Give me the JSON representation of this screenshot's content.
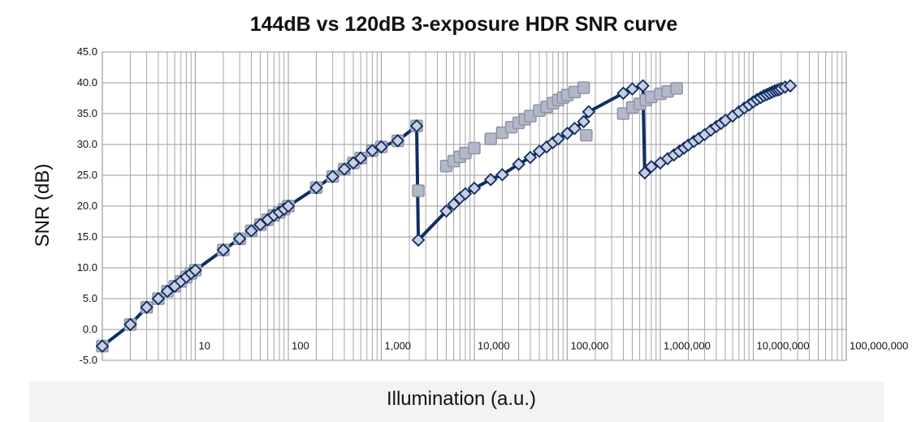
{
  "chart_data": {
    "type": "scatter",
    "title": "144dB vs 120dB 3-exposure HDR SNR curve",
    "xlabel": "Illumination (a.u.)",
    "ylabel": "SNR (dB)",
    "x_scale": "log",
    "xlim": [
      1,
      100000000
    ],
    "ylim": [
      -5,
      45
    ],
    "x_tick_values": [
      10,
      100,
      1000,
      10000,
      100000,
      1000000,
      10000000,
      100000000
    ],
    "x_tick_labels": [
      "10",
      "100",
      "1,000",
      "10,000",
      "100,000",
      "1,000,000",
      "10,000,000",
      "100,000,000"
    ],
    "y_tick_values": [
      -5,
      0,
      5,
      10,
      15,
      20,
      25,
      30,
      35,
      40,
      45
    ],
    "y_tick_labels": [
      "-5.0",
      "0.0",
      "5.0",
      "10.0",
      "15.0",
      "20.0",
      "25.0",
      "30.0",
      "35.0",
      "40.0",
      "45.0"
    ],
    "grid": true,
    "legend": "none",
    "series": [
      {
        "marker": "square",
        "color": "#b3b8c9",
        "edge_color": "#8d93a8",
        "points": [
          [
            1,
            -2.7
          ],
          [
            2,
            0.8
          ],
          [
            3,
            3.6
          ],
          [
            4,
            5.0
          ],
          [
            5,
            6.2
          ],
          [
            6,
            7.0
          ],
          [
            7,
            7.8
          ],
          [
            8,
            8.5
          ],
          [
            9,
            9.1
          ],
          [
            10,
            9.6
          ],
          [
            20,
            12.9
          ],
          [
            30,
            14.7
          ],
          [
            40,
            16.0
          ],
          [
            50,
            17.0
          ],
          [
            60,
            17.8
          ],
          [
            70,
            18.5
          ],
          [
            80,
            19.0
          ],
          [
            90,
            19.5
          ],
          [
            100,
            20.0
          ],
          [
            200,
            23.0
          ],
          [
            300,
            24.8
          ],
          [
            400,
            26.0
          ],
          [
            500,
            27.0
          ],
          [
            600,
            27.8
          ],
          [
            800,
            29.0
          ],
          [
            1000,
            29.6
          ],
          [
            1500,
            30.6
          ],
          [
            2400,
            33.0
          ],
          [
            2500,
            22.5
          ],
          [
            5000,
            26.5
          ],
          [
            6000,
            27.3
          ],
          [
            7000,
            28.0
          ],
          [
            8000,
            28.6
          ],
          [
            10000,
            29.4
          ],
          [
            15000,
            30.9
          ],
          [
            20000,
            31.9
          ],
          [
            25000,
            32.8
          ],
          [
            30000,
            33.5
          ],
          [
            35000,
            34.1
          ],
          [
            40000,
            34.6
          ],
          [
            50000,
            35.5
          ],
          [
            60000,
            36.1
          ],
          [
            70000,
            36.7
          ],
          [
            80000,
            37.2
          ],
          [
            90000,
            37.6
          ],
          [
            100000,
            38.0
          ],
          [
            120000,
            38.5
          ],
          [
            150000,
            39.2
          ],
          [
            160000,
            31.5
          ],
          [
            400000,
            35.0
          ],
          [
            500000,
            36.0
          ],
          [
            600000,
            36.6
          ],
          [
            700000,
            37.2
          ],
          [
            800000,
            37.7
          ],
          [
            1000000,
            38.2
          ],
          [
            1200000,
            38.6
          ],
          [
            1500000,
            39.1
          ]
        ]
      },
      {
        "marker": "diamond",
        "color": "#c9cfe0",
        "edge_color": "#0f2d62",
        "line_color": "#0f2d62",
        "points": [
          [
            1,
            -2.7
          ],
          [
            2,
            0.8
          ],
          [
            3,
            3.6
          ],
          [
            4,
            5.0
          ],
          [
            5,
            6.2
          ],
          [
            6,
            7.0
          ],
          [
            7,
            7.8
          ],
          [
            8,
            8.5
          ],
          [
            9,
            9.1
          ],
          [
            10,
            9.6
          ],
          [
            20,
            12.9
          ],
          [
            30,
            14.7
          ],
          [
            40,
            16.0
          ],
          [
            50,
            17.0
          ],
          [
            60,
            17.8
          ],
          [
            70,
            18.5
          ],
          [
            80,
            19.0
          ],
          [
            90,
            19.5
          ],
          [
            100,
            20.0
          ],
          [
            200,
            23.0
          ],
          [
            300,
            24.8
          ],
          [
            400,
            26.0
          ],
          [
            500,
            27.0
          ],
          [
            600,
            27.8
          ],
          [
            800,
            29.0
          ],
          [
            1000,
            29.6
          ],
          [
            1500,
            30.6
          ],
          [
            2400,
            33.0
          ],
          [
            2500,
            14.5
          ],
          [
            5000,
            19.2
          ],
          [
            6000,
            20.3
          ],
          [
            7000,
            21.3
          ],
          [
            8000,
            22.0
          ],
          [
            10000,
            22.9
          ],
          [
            15000,
            24.3
          ],
          [
            20000,
            25.1
          ],
          [
            30000,
            26.8
          ],
          [
            40000,
            27.9
          ],
          [
            50000,
            28.9
          ],
          [
            60000,
            29.6
          ],
          [
            70000,
            30.3
          ],
          [
            80000,
            30.9
          ],
          [
            100000,
            31.8
          ],
          [
            120000,
            32.6
          ],
          [
            150000,
            33.7
          ],
          [
            170000,
            35.3
          ],
          [
            400000,
            38.3
          ],
          [
            500000,
            39.0
          ],
          [
            650000,
            39.5
          ],
          [
            680000,
            25.4
          ],
          [
            800000,
            26.4
          ],
          [
            1000000,
            27.0
          ],
          [
            1200000,
            27.7
          ],
          [
            1400000,
            28.3
          ],
          [
            1600000,
            28.9
          ],
          [
            1800000,
            29.4
          ],
          [
            2000000,
            29.9
          ],
          [
            2300000,
            30.5
          ],
          [
            2600000,
            31.0
          ],
          [
            3000000,
            31.6
          ],
          [
            3500000,
            32.3
          ],
          [
            4000000,
            32.9
          ],
          [
            4500000,
            33.4
          ],
          [
            5000000,
            33.9
          ],
          [
            6000000,
            34.6
          ],
          [
            7000000,
            35.3
          ],
          [
            8000000,
            35.9
          ],
          [
            9000000,
            36.4
          ],
          [
            10000000,
            36.9
          ],
          [
            11000000,
            37.3
          ],
          [
            12000000,
            37.6
          ],
          [
            13000000,
            37.9
          ],
          [
            14000000,
            38.1
          ],
          [
            15000000,
            38.3
          ],
          [
            16000000,
            38.5
          ],
          [
            17000000,
            38.7
          ],
          [
            18000000,
            38.8
          ],
          [
            19000000,
            38.9
          ],
          [
            20000000,
            39.1
          ],
          [
            22000000,
            39.3
          ],
          [
            25000000,
            39.5
          ]
        ]
      }
    ]
  }
}
